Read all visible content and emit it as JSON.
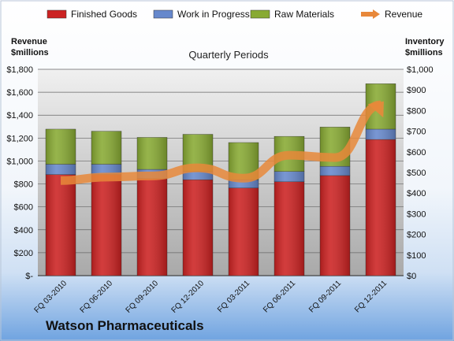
{
  "chart_data": {
    "type": "bar",
    "title": "Quarterly Periods",
    "company": "Watson Pharmaceuticals",
    "categories": [
      "FQ 03-2010",
      "FQ 06-2010",
      "FQ 09-2010",
      "FQ 12-2010",
      "FQ 03-2011",
      "FQ 06-2011",
      "FQ 09-2011",
      "FQ 12-2011"
    ],
    "stacked_series": [
      {
        "name": "Finished Goods",
        "color": "#cc2222",
        "values": [
          490,
          490,
          470,
          465,
          425,
          455,
          485,
          660
        ]
      },
      {
        "name": "Work in Progress",
        "color": "#6688cc",
        "values": [
          50,
          50,
          45,
          40,
          40,
          50,
          45,
          50
        ]
      },
      {
        "name": "Raw Materials",
        "color": "#88aa33",
        "values": [
          170,
          160,
          155,
          180,
          180,
          170,
          190,
          220
        ]
      }
    ],
    "line_series": {
      "name": "Revenue",
      "color": "#e8883a",
      "values": [
        830,
        860,
        870,
        940,
        850,
        1050,
        1030,
        1490
      ]
    },
    "left_axis": {
      "label_line1": "Revenue",
      "label_line2": "$millions",
      "min": 0,
      "max": 1800,
      "step": 200,
      "tick_labels": [
        "$-",
        "$200",
        "$400",
        "$600",
        "$800",
        "$1,000",
        "$1,200",
        "$1,400",
        "$1,600",
        "$1,800"
      ]
    },
    "right_axis": {
      "label_line1": "Inventory",
      "label_line2": "$millions",
      "min": 0,
      "max": 1000,
      "step": 100,
      "tick_labels": [
        "$0",
        "$100",
        "$200",
        "$300",
        "$400",
        "$500",
        "$600",
        "$700",
        "$800",
        "$900",
        "$1,000"
      ]
    },
    "legend_position": "top",
    "grid": true
  }
}
